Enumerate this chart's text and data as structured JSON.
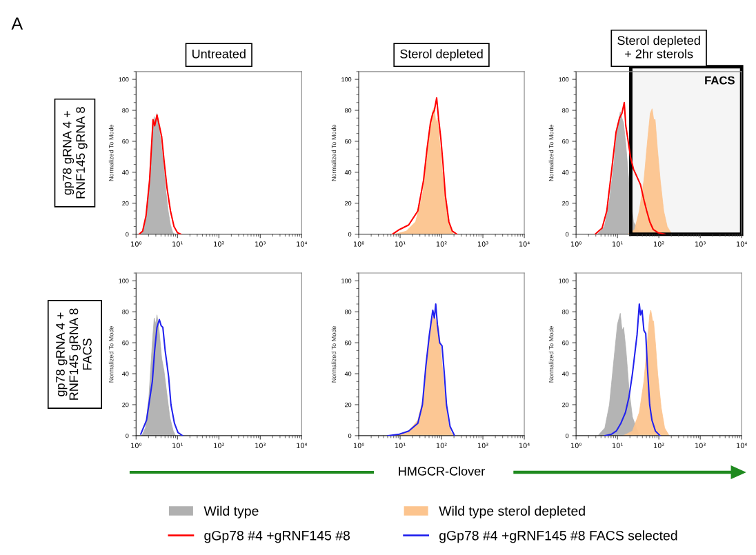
{
  "chart_data": [
    {
      "type": "area",
      "title": "Untreated",
      "ylabel": "Normalized To Mode",
      "annotations": [
        "A",
        "gp78 gRNA 4 +\nRNF145 gRNA 8"
      ],
      "xlim": [
        1,
        10000
      ],
      "ylim": [
        0,
        105
      ],
      "log": "x",
      "legend": "bottom",
      "grid": false,
      "xticks": [
        {
          "value": 1,
          "label": "10⁰"
        },
        {
          "value": 10,
          "label": "10¹"
        },
        {
          "value": 100,
          "label": "10²"
        },
        {
          "value": 1000,
          "label": "10³"
        },
        {
          "value": 10000,
          "label": "10⁴"
        }
      ],
      "yticks": [
        0,
        20,
        40,
        60,
        80,
        100
      ],
      "series": [
        {
          "name": "Wild type",
          "color": "#b0b0b0",
          "x": [
            1.26,
            1.53,
            1.86,
            2.26,
            2.57,
            2.74,
            2.93,
            3.2,
            3.55,
            4.04,
            4.6,
            5.24,
            5.96,
            6.78,
            7.72,
            8.79
          ],
          "values": [
            0,
            3,
            15,
            45,
            70,
            76,
            72,
            78,
            70,
            58,
            45,
            28,
            15,
            6,
            1,
            0
          ]
        },
        {
          "name": "gGp78 #4 +gRNF145 #8",
          "type": "line",
          "color": "#ff0000",
          "x": [
            1.18,
            1.44,
            1.74,
            2.12,
            2.57,
            2.81,
            3.2,
            3.65,
            4.15,
            4.72,
            5.58,
            6.78,
            8.24,
            10,
            12.1
          ],
          "values": [
            0,
            2,
            12,
            35,
            74,
            70,
            77,
            70,
            63,
            48,
            30,
            15,
            5,
            1,
            0
          ]
        }
      ]
    },
    {
      "type": "area",
      "title": "Sterol depleted",
      "ylabel": "Normalized To Mode",
      "xlim": [
        1,
        10000
      ],
      "ylim": [
        0,
        105
      ],
      "log": "x",
      "legend": "bottom",
      "grid": false,
      "xticks": [
        {
          "value": 1,
          "label": "10⁰"
        },
        {
          "value": 10,
          "label": "10¹"
        },
        {
          "value": 100,
          "label": "10²"
        },
        {
          "value": 1000,
          "label": "10³"
        },
        {
          "value": 10000,
          "label": "10⁴"
        }
      ],
      "yticks": [
        0,
        20,
        40,
        60,
        80,
        100
      ],
      "series": [
        {
          "name": "Wild type sterol depleted",
          "color": "#fcc48e",
          "x": [
            7.45,
            14.1,
            23.6,
            34.6,
            44.7,
            54.1,
            61.5,
            67.3,
            72.6,
            79.4,
            90.3,
            109,
            132,
            161,
            194
          ],
          "values": [
            0,
            2,
            8,
            25,
            50,
            70,
            80,
            82,
            72,
            75,
            60,
            35,
            15,
            4,
            0
          ]
        },
        {
          "name": "gGp78 #4 +gRNF145 #8",
          "type": "line",
          "color": "#ff0000",
          "x": [
            6.56,
            9.62,
            16.1,
            26.8,
            36.9,
            44.7,
            54.1,
            61.5,
            67.3,
            76.4,
            84.7,
            96.2,
            109,
            124,
            151,
            182,
            236
          ],
          "values": [
            0,
            3,
            6,
            15,
            35,
            55,
            72,
            78,
            80,
            88,
            75,
            62,
            45,
            25,
            8,
            2,
            0
          ]
        }
      ]
    },
    {
      "type": "area",
      "title": "Sterol depleted\n+ 2hr sterols",
      "ylabel": "Normalized To Mode",
      "xlim": [
        1,
        10000
      ],
      "ylim": [
        0,
        105
      ],
      "log": "x",
      "grid": false,
      "xticks": [
        {
          "value": 1,
          "label": "10⁰"
        },
        {
          "value": 10,
          "label": "10¹"
        },
        {
          "value": 100,
          "label": "10²"
        },
        {
          "value": 1000,
          "label": "10³"
        },
        {
          "value": 10000,
          "label": "10⁴"
        }
      ],
      "yticks": [
        0,
        20,
        40,
        60,
        80,
        100
      ],
      "bands": [
        {
          "axis": "x",
          "from": 21,
          "to": 10000,
          "label": "FACS",
          "color": "#000000"
        }
      ],
      "series": [
        {
          "name": "Wild type",
          "color": "#b0b0b0",
          "x": [
            3.29,
            4.84,
            6.28,
            8.13,
            9.87,
            11.7,
            12.8,
            14.0,
            15.9,
            18.8,
            21.4,
            24.4,
            36.0
          ],
          "values": [
            0,
            5,
            20,
            45,
            68,
            79,
            75,
            72,
            58,
            35,
            20,
            8,
            0
          ]
        },
        {
          "name": "Wild type sterol depleted",
          "color": "#fcc48e",
          "x": [
            17.7,
            26.0,
            33.7,
            43.7,
            53.1,
            62.0,
            68.7,
            75.2,
            81.3,
            92.5,
            108,
            131,
            159,
            206
          ],
          "values": [
            0,
            3,
            15,
            35,
            60,
            78,
            81,
            74,
            74,
            55,
            35,
            15,
            5,
            0
          ]
        },
        {
          "name": "gGp78 #4 +gRNF145 #8",
          "type": "line",
          "color": "#ff0000",
          "x": [
            2.89,
            4.26,
            5.52,
            7.14,
            9.25,
            11.2,
            12.8,
            14.6,
            15.9,
            17.7,
            20.6,
            24.4,
            29.7,
            36.0,
            43.7,
            51.0,
            60.4,
            73.3,
            95.0,
            140
          ],
          "values": [
            0,
            4,
            15,
            40,
            66,
            75,
            78,
            85,
            70,
            62,
            50,
            42,
            37,
            32,
            22,
            15,
            8,
            3,
            1,
            0
          ]
        }
      ]
    },
    {
      "type": "area",
      "ylabel": "Normalized To Mode",
      "annotations": [
        "gp78 gRNA 4 +\nRNF145 gRNA 8\nFACS"
      ],
      "xlim": [
        1,
        10000
      ],
      "ylim": [
        0,
        105
      ],
      "log": "x",
      "legend": "bottom",
      "grid": false,
      "xticks": [
        {
          "value": 1,
          "label": "10⁰"
        },
        {
          "value": 10,
          "label": "10¹"
        },
        {
          "value": 100,
          "label": "10²"
        },
        {
          "value": 1000,
          "label": "10³"
        },
        {
          "value": 10000,
          "label": "10⁴"
        }
      ],
      "yticks": [
        0,
        20,
        40,
        60,
        80,
        100
      ],
      "series": [
        {
          "name": "Wild type",
          "color": "#b0b0b0",
          "x": [
            1.38,
            1.68,
            2.04,
            2.47,
            2.74,
            3.0,
            3.2,
            3.55,
            4.15,
            4.72,
            5.37,
            6.53,
            7.92,
            9.02
          ],
          "values": [
            0,
            5,
            25,
            60,
            76,
            72,
            78,
            70,
            50,
            42,
            30,
            12,
            3,
            0
          ]
        },
        {
          "name": "gGp78 #4 +gRNF145 #8 FACS selected",
          "type": "line",
          "color": "#2222ee",
          "x": [
            1.3,
            1.79,
            2.17,
            2.47,
            2.81,
            3.2,
            3.65,
            4.04,
            4.43,
            5.04,
            6.12,
            6.96,
            8.45,
            10.3,
            13.3
          ],
          "values": [
            1,
            10,
            25,
            35,
            55,
            70,
            75,
            71,
            70,
            55,
            38,
            20,
            8,
            2,
            0
          ]
        }
      ]
    },
    {
      "type": "area",
      "ylabel": "Normalized To Mode",
      "xlabel": "HMGCR-Clover",
      "xlim": [
        1,
        10000
      ],
      "ylim": [
        0,
        105
      ],
      "log": "x",
      "legend": "bottom",
      "grid": false,
      "xticks": [
        {
          "value": 1,
          "label": "10⁰"
        },
        {
          "value": 10,
          "label": "10¹"
        },
        {
          "value": 100,
          "label": "10²"
        },
        {
          "value": 1000,
          "label": "10³"
        },
        {
          "value": 10000,
          "label": "10⁴"
        }
      ],
      "yticks": [
        0,
        20,
        40,
        60,
        80,
        100
      ],
      "series": [
        {
          "name": "Wild type sterol depleted",
          "color": "#fcc48e",
          "x": [
            7.45,
            16.1,
            26.8,
            36.9,
            44.7,
            54.1,
            61.5,
            67.3,
            74.5,
            84.7,
            96.2,
            117,
            141,
            171,
            207
          ],
          "values": [
            0,
            3,
            10,
            25,
            50,
            70,
            76,
            78,
            73,
            70,
            55,
            30,
            10,
            2,
            0
          ]
        },
        {
          "name": "gGp78 #4 +gRNF145 #8 FACS selected",
          "type": "line",
          "color": "#2222ee",
          "x": [
            5.08,
            9.62,
            16.1,
            26.8,
            34.6,
            41.9,
            50.8,
            61.5,
            67.3,
            72.6,
            79.4,
            90.3,
            103,
            117,
            132,
            161,
            207
          ],
          "values": [
            0,
            1,
            3,
            8,
            20,
            45,
            65,
            81,
            76,
            85,
            72,
            60,
            58,
            40,
            20,
            6,
            0
          ]
        }
      ]
    },
    {
      "type": "area",
      "ylabel": "Normalized To Mode",
      "xlim": [
        1,
        10000
      ],
      "ylim": [
        0,
        105
      ],
      "log": "x",
      "legend": "bottom",
      "grid": false,
      "xticks": [
        {
          "value": 1,
          "label": "10⁰"
        },
        {
          "value": 10,
          "label": "10¹"
        },
        {
          "value": 100,
          "label": "10²"
        },
        {
          "value": 1000,
          "label": "10³"
        },
        {
          "value": 10000,
          "label": "10⁴"
        }
      ],
      "yticks": [
        0,
        20,
        40,
        60,
        80,
        100
      ],
      "series": [
        {
          "name": "Wild type",
          "color": "#b0b0b0",
          "x": [
            3.37,
            4.95,
            6.39,
            8.26,
            10.0,
            11.7,
            12.9,
            14.1,
            16.1,
            19.0,
            23.0,
            33.7
          ],
          "values": [
            0,
            5,
            20,
            50,
            72,
            79,
            68,
            70,
            55,
            30,
            12,
            0
          ]
        },
        {
          "name": "Wild type sterol depleted",
          "color": "#fcc48e",
          "x": [
            13.8,
            23.0,
            33.7,
            43.5,
            52.7,
            60.0,
            63.9,
            70.8,
            74.5,
            82.6,
            93.8,
            114,
            138,
            178
          ],
          "values": [
            0,
            3,
            15,
            35,
            60,
            78,
            81,
            74,
            74,
            60,
            40,
            18,
            5,
            0
          ]
        },
        {
          "name": "gGp78 #4 +gRNF145 #8 FACS selected",
          "type": "line",
          "color": "#2222ee",
          "x": [
            4.95,
            7.26,
            9.38,
            12.1,
            15.6,
            19.0,
            23.0,
            26.8,
            29.7,
            33.7,
            36.0,
            39.3,
            43.5,
            48.2,
            52.7,
            60.0,
            68.1,
            82.6,
            107
          ],
          "values": [
            0,
            1,
            3,
            8,
            15,
            25,
            40,
            55,
            65,
            85,
            78,
            81,
            68,
            66,
            45,
            20,
            10,
            3,
            0
          ]
        }
      ]
    }
  ]
}
